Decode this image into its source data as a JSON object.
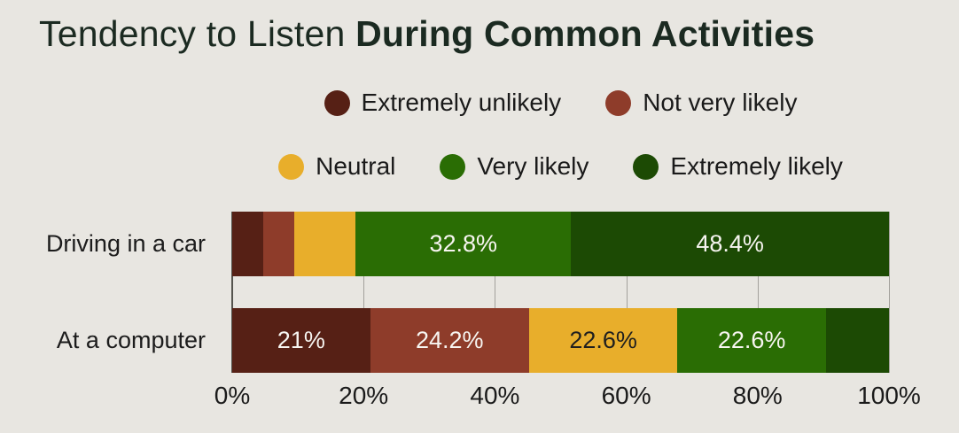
{
  "title": {
    "regular": "Tendency to Listen ",
    "bold": "During Common Activities"
  },
  "colors": {
    "background": "#e8e6e1",
    "title_text": "#1b2a21",
    "axis_text": "#1a1a1a",
    "gridline": "#a3a19c",
    "axis_line": "#55544e",
    "light_label": "#f7f5f1",
    "dark_label": "#1f1f1f"
  },
  "chart_data": {
    "type": "bar",
    "orientation": "horizontal-stacked",
    "title": "Tendency to Listen During Common Activities",
    "categories": [
      "Driving in a car",
      "At a computer"
    ],
    "x_tick_labels": [
      "0%",
      "20%",
      "40%",
      "60%",
      "80%",
      "100%"
    ],
    "xlim": [
      0,
      100
    ],
    "grid": true,
    "legend_position": "top-center",
    "series": [
      {
        "name": "Extremely unlikely",
        "color": "#562015",
        "label_text_color": "#f7f5f1",
        "values": [
          4.7,
          21
        ],
        "value_labels": [
          "",
          "21%"
        ]
      },
      {
        "name": "Not very likely",
        "color": "#8e3c2a",
        "label_text_color": "#f7f5f1",
        "values": [
          4.7,
          24.2
        ],
        "value_labels": [
          "",
          "24.2%"
        ]
      },
      {
        "name": "Neutral",
        "color": "#e8ae2b",
        "label_text_color": "#1f1f1f",
        "values": [
          9.4,
          22.6
        ],
        "value_labels": [
          "",
          "22.6%"
        ]
      },
      {
        "name": "Very likely",
        "color": "#2a6d04",
        "label_text_color": "#f7f5f1",
        "values": [
          32.8,
          22.6
        ],
        "value_labels": [
          "32.8%",
          "22.6%"
        ]
      },
      {
        "name": "Extremely likely",
        "color": "#1c4a04",
        "label_text_color": "#f7f5f1",
        "values": [
          48.4,
          9.6
        ],
        "value_labels": [
          "48.4%",
          ""
        ]
      }
    ],
    "legend_rows": [
      [
        0,
        1
      ],
      [
        2,
        3,
        4
      ]
    ]
  }
}
